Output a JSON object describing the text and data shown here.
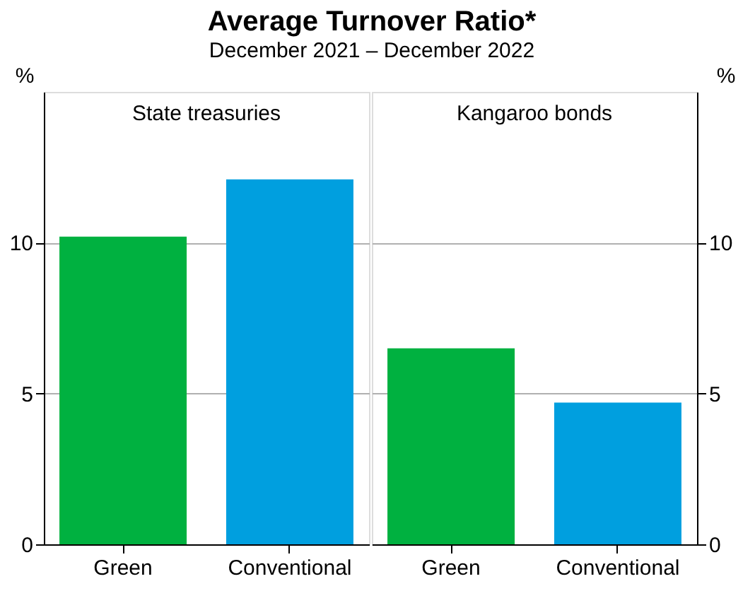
{
  "chart_data": [
    {
      "type": "bar",
      "title": "Average Turnover Ratio*",
      "subtitle": "December 2021 – December 2022",
      "ylabel": "%",
      "annotations": [
        "State treasuries"
      ],
      "categories": [
        "Green",
        "Conventional"
      ],
      "values": [
        10.2,
        12.1
      ],
      "colors": [
        "#00b140",
        "#009fdf"
      ],
      "ylim": [
        0,
        15
      ],
      "yticks": [
        0,
        5,
        10
      ],
      "grid": "y"
    },
    {
      "type": "bar",
      "y2label": "%",
      "annotations": [
        "Kangaroo bonds"
      ],
      "categories": [
        "Green",
        "Conventional"
      ],
      "series": [
        {
          "values": [
            6.5,
            4.7
          ],
          "axis": "y2"
        }
      ],
      "colors": [
        "#00b140",
        "#009fdf"
      ],
      "y2lim": [
        0,
        15
      ],
      "y2ticks": [
        0,
        5,
        10
      ],
      "grid": "y"
    }
  ]
}
